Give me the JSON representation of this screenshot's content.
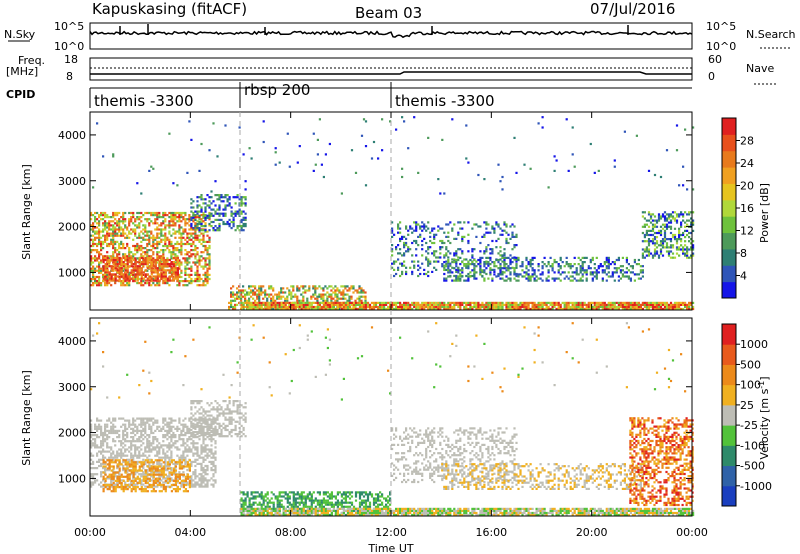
{
  "header": {
    "station": "Kapuskasing (fitACF)",
    "beam": "Beam 03",
    "date": "07/Jul/2016"
  },
  "top_panels": {
    "nsky_label": "N.Sky",
    "nsearch_label": "N.Search",
    "nsky_ticks": [
      "10^5",
      "10^0"
    ],
    "nsearch_ticks": [
      "10^5",
      "10^0"
    ],
    "freq_label_1": "Freq.",
    "freq_label_2": "[MHz]",
    "freq_ticks": [
      "18",
      "8"
    ],
    "nave_label": "Nave",
    "nave_ticks": [
      "60",
      "0"
    ],
    "cpid_label": "CPID",
    "cpid_segments": [
      {
        "label": "themis -3300",
        "start_hour": 0
      },
      {
        "label": "rbsp 200",
        "start_hour": 6
      },
      {
        "label": "themis -3300",
        "start_hour": 12
      }
    ]
  },
  "chart_data": [
    {
      "type": "heatmap",
      "title": "",
      "xlabel": "Time UT",
      "ylabel": "Slant Range [km]",
      "xlim": [
        0,
        24
      ],
      "ylim": [
        180,
        4500
      ],
      "x_ticks": [
        "00:00",
        "04:00",
        "08:00",
        "12:00",
        "16:00",
        "20:00",
        "00:00"
      ],
      "y_ticks": [
        1000,
        2000,
        3000,
        4000
      ],
      "colorbar": {
        "label": "Power [dB]",
        "ticks": [
          "28",
          "24",
          "20",
          "16",
          "12",
          "8",
          "4"
        ],
        "colors": [
          "#1515e8",
          "#2f55b8",
          "#2e7f74",
          "#4d9a5a",
          "#6ec23c",
          "#b0d83a",
          "#e6c41f",
          "#f0a020",
          "#e87a1c",
          "#e8501c",
          "#e02020"
        ]
      }
    },
    {
      "type": "heatmap",
      "title": "",
      "xlabel": "Time UT",
      "ylabel": "Slant Range [km]",
      "xlim": [
        0,
        24
      ],
      "ylim": [
        180,
        4500
      ],
      "x_ticks": [
        "00:00",
        "04:00",
        "08:00",
        "12:00",
        "16:00",
        "20:00",
        "00:00"
      ],
      "y_ticks": [
        1000,
        2000,
        3000,
        4000
      ],
      "colorbar": {
        "label": "Velocity [m s^-1]",
        "ticks": [
          "1000",
          "500",
          "100",
          "25",
          "-25",
          "-100",
          "-500",
          "-1000"
        ],
        "colors": [
          "#1a3fbf",
          "#2f62a8",
          "#2e8a6a",
          "#52c23a",
          "#bdbdb5",
          "#f0b020",
          "#ec8a1a",
          "#e85a1c",
          "#e02020"
        ]
      }
    }
  ]
}
